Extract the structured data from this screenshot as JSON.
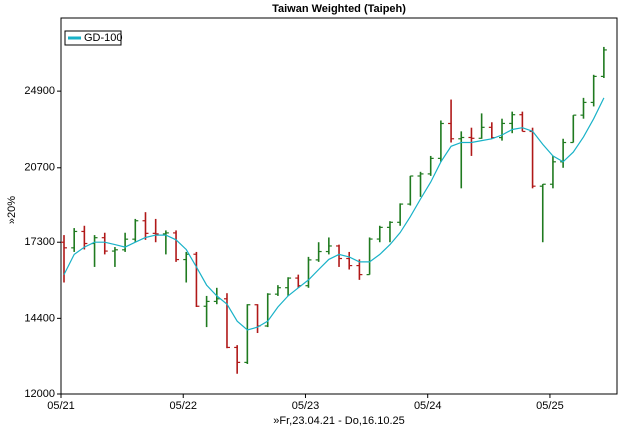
{
  "chart_data": {
    "type": "ohlc",
    "title": "Taiwan Weighted (Taipeh)",
    "x_label": "»Fr,23.04.21 - Do,16.10.25",
    "y_label": "»20%",
    "categories": [
      "05/21",
      null,
      null,
      null,
      null,
      null,
      null,
      null,
      null,
      null,
      null,
      null,
      "05/22",
      null,
      null,
      null,
      null,
      null,
      null,
      null,
      null,
      null,
      null,
      null,
      "05/23",
      null,
      null,
      null,
      null,
      null,
      null,
      null,
      null,
      null,
      null,
      null,
      "05/24",
      null,
      null,
      null,
      null,
      null,
      null,
      null,
      null,
      null,
      null,
      null,
      "05/25",
      null,
      null,
      null,
      null,
      null
    ],
    "open": [
      17300,
      17068,
      17755,
      17247,
      17490,
      16935,
      16987,
      17428,
      18219,
      17674,
      17652,
      17693,
      16592,
      16807,
      14826,
      15000,
      15095,
      13425,
      12950,
      14880,
      14138,
      15265,
      15504,
      15868,
      15579,
      16579,
      16916,
      17145,
      16634,
      16353,
      16001,
      17433,
      17931,
      18151,
      18966,
      20294,
      20397,
      21175,
      23032,
      22199,
      22268,
      22225,
      22820,
      22263,
      23035,
      23525,
      22594,
      19802,
      19895,
      21000,
      22000,
      23500,
      24232,
      25800
    ],
    "high": [
      17600,
      17900,
      18000,
      17600,
      17700,
      17100,
      17700,
      18300,
      18600,
      18300,
      17800,
      17800,
      16900,
      16900,
      15200,
      15500,
      15300,
      13500,
      14900,
      14900,
      15300,
      15600,
      15900,
      16000,
      16700,
      17300,
      17500,
      17200,
      16900,
      16600,
      17500,
      18000,
      18200,
      19000,
      20300,
      20500,
      21300,
      23200,
      24400,
      22600,
      22800,
      23600,
      23100,
      23300,
      23700,
      23700,
      22800,
      19900,
      21300,
      22200,
      23500,
      24500,
      25900,
      27700
    ],
    "low": [
      15700,
      16900,
      17000,
      16300,
      16800,
      16300,
      16900,
      17300,
      17400,
      17300,
      16800,
      16500,
      15700,
      14800,
      14100,
      14900,
      13400,
      12600,
      12900,
      13900,
      14100,
      15200,
      15200,
      15500,
      15500,
      16500,
      16800,
      16300,
      16200,
      15800,
      16000,
      17300,
      17300,
      18000,
      18900,
      19300,
      20300,
      21000,
      22000,
      19700,
      21300,
      22200,
      22200,
      22100,
      22500,
      22600,
      19700,
      17300,
      19700,
      20700,
      22000,
      23300,
      24000,
      25700
    ],
    "close": [
      17068,
      17755,
      17247,
      17490,
      16935,
      16987,
      17428,
      18219,
      17674,
      17652,
      17693,
      16592,
      16807,
      14826,
      15000,
      15095,
      13425,
      12950,
      14880,
      14138,
      15265,
      15504,
      15868,
      15579,
      16579,
      16916,
      17145,
      16634,
      16353,
      16001,
      17433,
      17931,
      18151,
      18966,
      20294,
      20397,
      21175,
      23032,
      22199,
      22268,
      22225,
      22820,
      22263,
      23035,
      23525,
      22594,
      19802,
      19895,
      21000,
      22000,
      23500,
      24232,
      25800,
      27500
    ],
    "up_color": "#1f7a1f",
    "down_color": "#b01818",
    "series": [
      {
        "name": "GD-100",
        "color": "#19b2c8",
        "values": [
          16000,
          16800,
          17100,
          17300,
          17300,
          17200,
          17100,
          17300,
          17500,
          17600,
          17600,
          17400,
          17000,
          16300,
          15600,
          15200,
          14900,
          14300,
          14000,
          14100,
          14300,
          14800,
          15200,
          15500,
          15800,
          16200,
          16600,
          16800,
          16700,
          16500,
          16500,
          16800,
          17200,
          17700,
          18400,
          19200,
          20000,
          21000,
          21800,
          22000,
          22000,
          22100,
          22200,
          22400,
          22700,
          22800,
          22600,
          21900,
          21300,
          21000,
          21500,
          22300,
          23300,
          24500
        ]
      }
    ],
    "ylim": [
      12000,
      29700
    ],
    "yticks": [
      12000,
      14400,
      17300,
      20700,
      24900
    ],
    "log_scale": true,
    "legend": "upper left"
  }
}
